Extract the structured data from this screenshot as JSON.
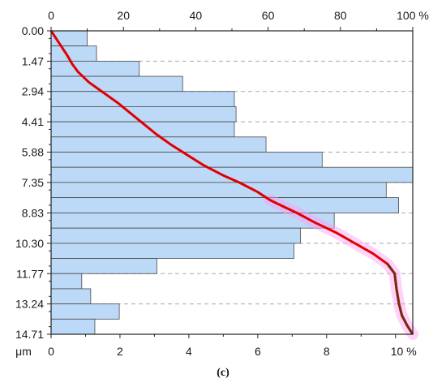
{
  "panel_label": "(c)",
  "chart_data": {
    "type": "bar",
    "orientation": "horizontal",
    "y_unit_label": "μm",
    "y_tick_labels": [
      "0.00",
      "1.47",
      "2.94",
      "4.41",
      "5.88",
      "7.35",
      "8.83",
      "10.30",
      "11.77",
      "13.24",
      "14.71"
    ],
    "ylim": [
      0,
      14.71
    ],
    "bottom_axis": {
      "tick_labels": [
        "0",
        "2",
        "4",
        "6",
        "8",
        "10 %"
      ],
      "range": [
        0,
        10.5
      ]
    },
    "top_axis": {
      "tick_labels": [
        "0",
        "20",
        "40",
        "60",
        "80",
        "100 %"
      ],
      "range": [
        0,
        100
      ]
    },
    "bin_width": 0.735,
    "bins": [
      {
        "from": 0.0,
        "to": 0.735,
        "percent": 1.05
      },
      {
        "from": 0.735,
        "to": 1.47,
        "percent": 1.32
      },
      {
        "from": 1.47,
        "to": 2.205,
        "percent": 2.56
      },
      {
        "from": 2.205,
        "to": 2.94,
        "percent": 3.82
      },
      {
        "from": 2.94,
        "to": 3.675,
        "percent": 5.32
      },
      {
        "from": 3.675,
        "to": 4.41,
        "percent": 5.37
      },
      {
        "from": 4.41,
        "to": 5.145,
        "percent": 5.32
      },
      {
        "from": 5.145,
        "to": 5.88,
        "percent": 6.24
      },
      {
        "from": 5.88,
        "to": 6.615,
        "percent": 7.87
      },
      {
        "from": 6.615,
        "to": 7.35,
        "percent": 10.5
      },
      {
        "from": 7.35,
        "to": 8.085,
        "percent": 9.73
      },
      {
        "from": 8.085,
        "to": 8.83,
        "percent": 10.09
      },
      {
        "from": 8.83,
        "to": 9.565,
        "percent": 8.22
      },
      {
        "from": 9.565,
        "to": 10.3,
        "percent": 7.24
      },
      {
        "from": 10.3,
        "to": 11.035,
        "percent": 7.05
      },
      {
        "from": 11.035,
        "to": 11.77,
        "percent": 3.07
      },
      {
        "from": 11.77,
        "to": 12.505,
        "percent": 0.89
      },
      {
        "from": 12.505,
        "to": 13.24,
        "percent": 1.15
      },
      {
        "from": 13.24,
        "to": 13.975,
        "percent": 1.98
      },
      {
        "from": 13.975,
        "to": 14.71,
        "percent": 1.27
      }
    ],
    "cumulative_curve": {
      "axis": "top",
      "points": [
        {
          "depth": 0.0,
          "cumulative_percent": 0
        },
        {
          "depth": 0.4,
          "cumulative_percent": 1.5
        },
        {
          "depth": 0.8,
          "cumulative_percent": 3
        },
        {
          "depth": 1.2,
          "cumulative_percent": 4.5
        },
        {
          "depth": 1.6,
          "cumulative_percent": 5.8
        },
        {
          "depth": 2.0,
          "cumulative_percent": 7.5
        },
        {
          "depth": 2.5,
          "cumulative_percent": 10.5
        },
        {
          "depth": 3.0,
          "cumulative_percent": 14.5
        },
        {
          "depth": 3.5,
          "cumulative_percent": 18.5
        },
        {
          "depth": 4.0,
          "cumulative_percent": 22
        },
        {
          "depth": 4.5,
          "cumulative_percent": 25.5
        },
        {
          "depth": 5.0,
          "cumulative_percent": 29
        },
        {
          "depth": 5.5,
          "cumulative_percent": 33
        },
        {
          "depth": 6.0,
          "cumulative_percent": 37.5
        },
        {
          "depth": 6.5,
          "cumulative_percent": 42
        },
        {
          "depth": 7.0,
          "cumulative_percent": 47.5
        },
        {
          "depth": 7.35,
          "cumulative_percent": 52
        },
        {
          "depth": 7.8,
          "cumulative_percent": 57
        },
        {
          "depth": 8.2,
          "cumulative_percent": 60.5
        },
        {
          "depth": 8.5,
          "cumulative_percent": 64
        },
        {
          "depth": 8.83,
          "cumulative_percent": 68
        },
        {
          "depth": 9.3,
          "cumulative_percent": 73
        },
        {
          "depth": 9.8,
          "cumulative_percent": 79
        },
        {
          "depth": 10.3,
          "cumulative_percent": 84
        },
        {
          "depth": 10.8,
          "cumulative_percent": 89
        },
        {
          "depth": 11.3,
          "cumulative_percent": 93
        },
        {
          "depth": 11.77,
          "cumulative_percent": 95
        },
        {
          "depth": 12.5,
          "cumulative_percent": 95.5
        },
        {
          "depth": 13.24,
          "cumulative_percent": 96.2
        },
        {
          "depth": 13.8,
          "cumulative_percent": 97
        },
        {
          "depth": 14.3,
          "cumulative_percent": 98.5
        },
        {
          "depth": 14.71,
          "cumulative_percent": 100
        }
      ]
    },
    "grid": {
      "horizontal_dashed": true
    },
    "colors": {
      "bar_fill": "#bcd9f7",
      "bar_stroke": "#4a4a4a",
      "curve": "#e00000",
      "curve_dark": "#7a2a10",
      "curve_halo": "#ff9cf3",
      "grid": "#a8a8a8"
    }
  }
}
